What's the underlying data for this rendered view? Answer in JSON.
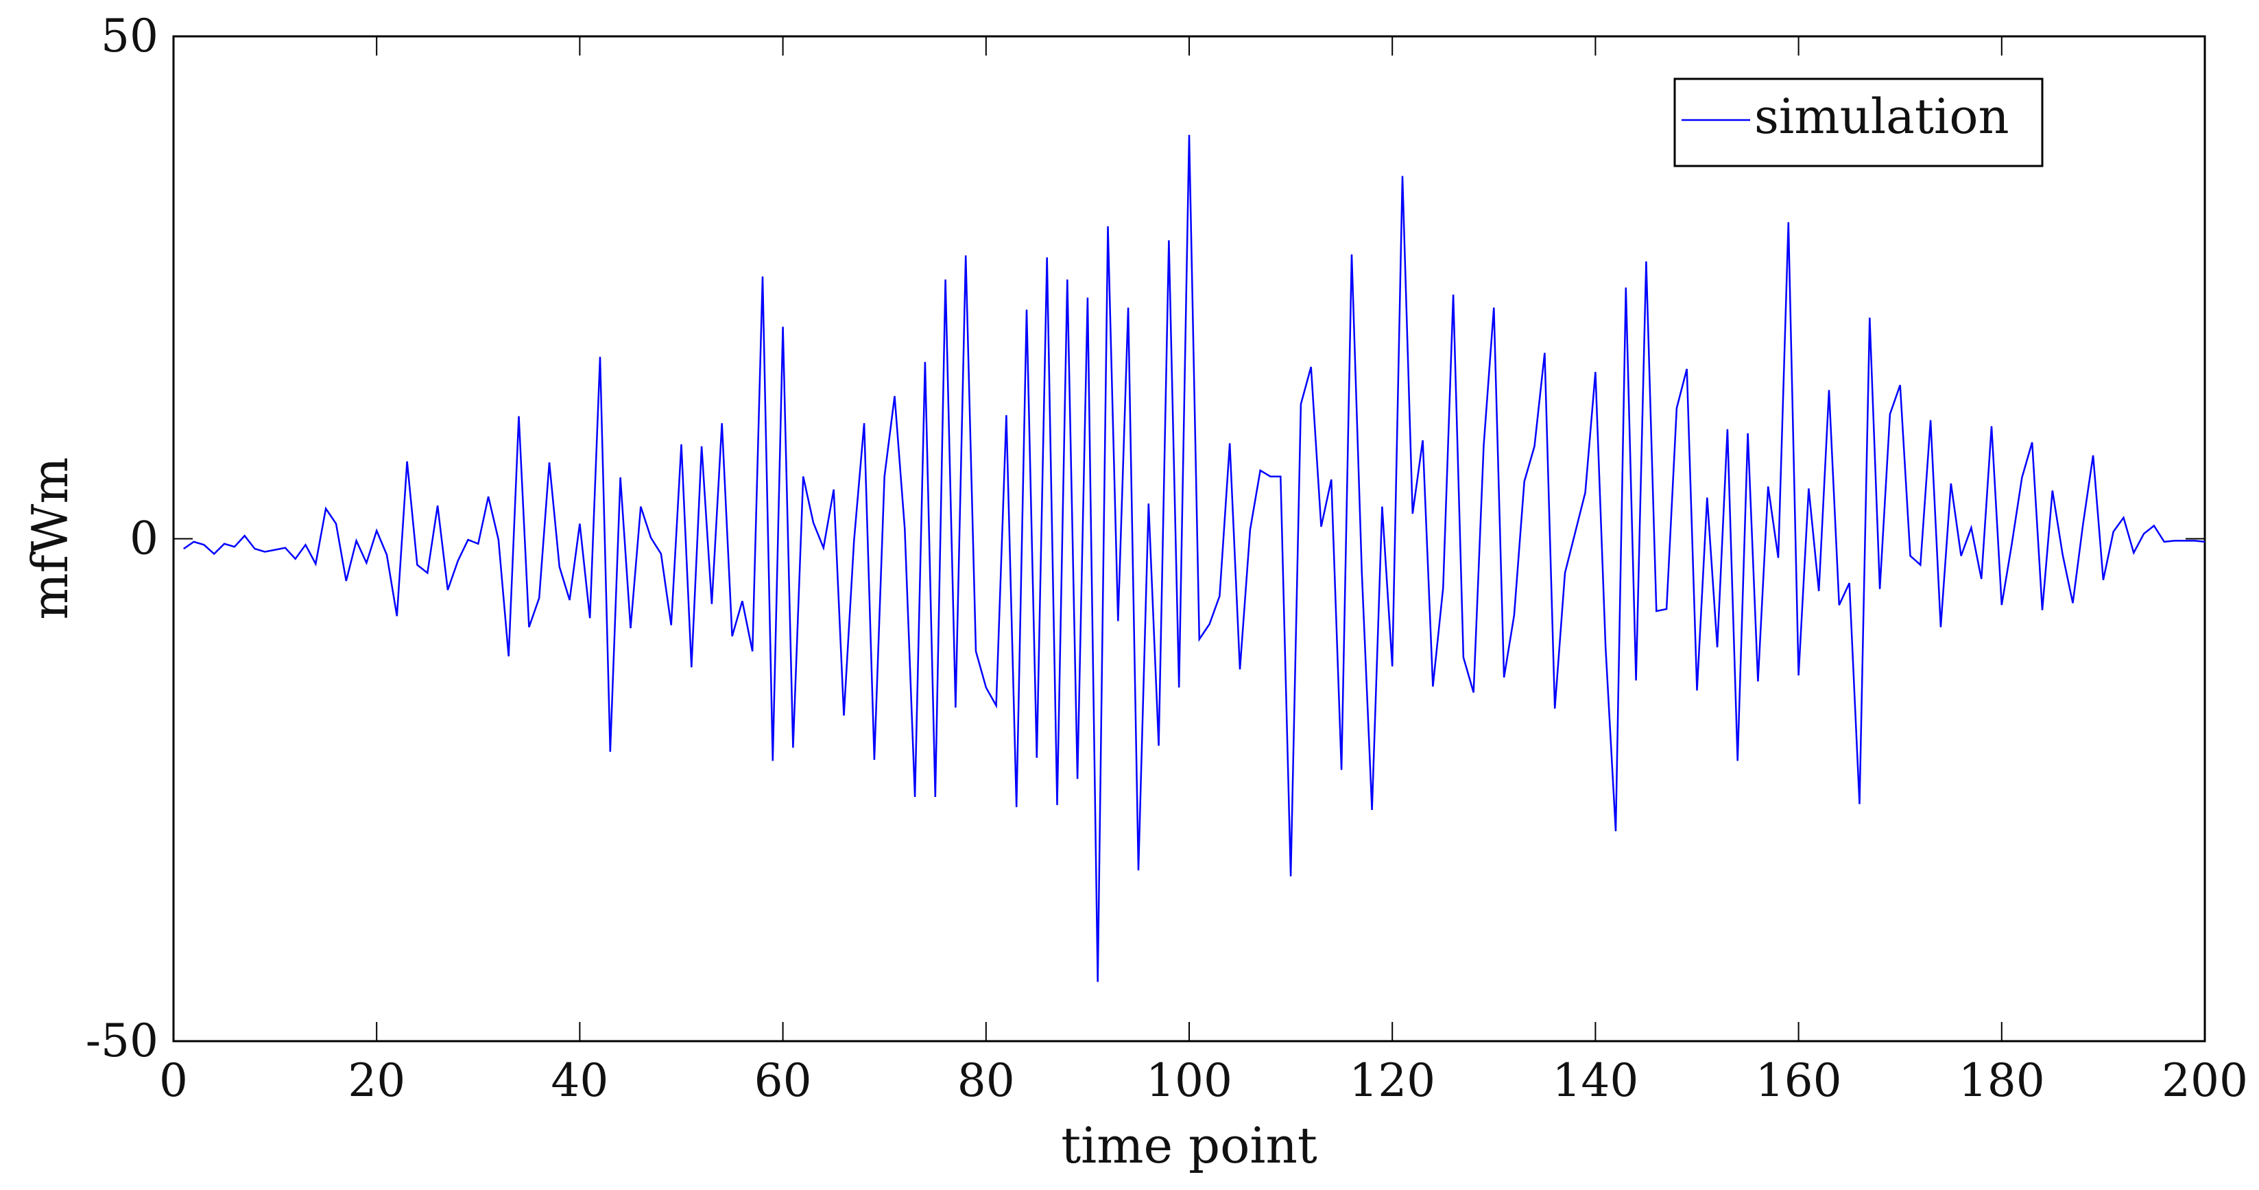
{
  "chart_data": {
    "type": "line",
    "xlabel": "time point",
    "ylabel": "mfWm",
    "xlim": [
      0,
      200
    ],
    "ylim": [
      -50,
      50
    ],
    "xticks": [
      0,
      20,
      40,
      60,
      80,
      100,
      120,
      140,
      160,
      180,
      200
    ],
    "yticks": [
      -50,
      0,
      50
    ],
    "grid": false,
    "legend": {
      "position": "top-right"
    },
    "series": [
      {
        "name": "simulation",
        "color": "#0000ff",
        "x": [
          1,
          2,
          3,
          4,
          5,
          6,
          7,
          8,
          9,
          10,
          11,
          12,
          13,
          14,
          15,
          16,
          17,
          18,
          19,
          20,
          21,
          22,
          23,
          24,
          25,
          26,
          27,
          28,
          29,
          30,
          31,
          32,
          33,
          34,
          35,
          36,
          37,
          38,
          39,
          40,
          41,
          42,
          43,
          44,
          45,
          46,
          47,
          48,
          49,
          50,
          51,
          52,
          53,
          54,
          55,
          56,
          57,
          58,
          59,
          60,
          61,
          62,
          63,
          64,
          65,
          66,
          67,
          68,
          69,
          70,
          71,
          72,
          73,
          74,
          75,
          76,
          77,
          78,
          79,
          80,
          81,
          82,
          83,
          84,
          85,
          86,
          87,
          88,
          89,
          90,
          91,
          92,
          93,
          94,
          95,
          96,
          97,
          98,
          99,
          100,
          101,
          102,
          103,
          104,
          105,
          106,
          107,
          108,
          109,
          110,
          111,
          112,
          113,
          114,
          115,
          116,
          117,
          118,
          119,
          120,
          121,
          122,
          123,
          124,
          125,
          126,
          127,
          128,
          129,
          130,
          131,
          132,
          133,
          134,
          135,
          136,
          137,
          138,
          139,
          140,
          141,
          142,
          143,
          144,
          145,
          146,
          147,
          148,
          149,
          150,
          151,
          152,
          153,
          154,
          155,
          156,
          157,
          158,
          159,
          160,
          161,
          162,
          163,
          164,
          165,
          166,
          167,
          168,
          169,
          170,
          171,
          172,
          173,
          174,
          175,
          176,
          177,
          178,
          179,
          180,
          181,
          182,
          183,
          184,
          185,
          186,
          187,
          188,
          189,
          190,
          191,
          192,
          193,
          194,
          195,
          196,
          197,
          198,
          199,
          200
        ],
        "values": [
          -1.0,
          -0.3,
          -0.6,
          -1.5,
          -0.5,
          -0.8,
          0.3,
          -1.0,
          -1.3,
          -1.1,
          -0.9,
          -2.0,
          -0.6,
          -2.5,
          3.0,
          1.5,
          -4.2,
          -0.2,
          -2.4,
          0.8,
          -1.6,
          -7.7,
          7.7,
          -2.6,
          -3.4,
          3.3,
          -5.1,
          -2.2,
          -0.1,
          -0.5,
          4.2,
          -0.1,
          -11.7,
          12.2,
          -8.8,
          -5.9,
          7.6,
          -2.8,
          -6.1,
          1.5,
          -7.9,
          18.1,
          -21.2,
          6.1,
          -8.9,
          3.2,
          0.1,
          -1.5,
          -8.6,
          9.4,
          -12.8,
          9.2,
          -6.5,
          11.5,
          -9.7,
          -6.2,
          -11.2,
          26.1,
          -22.1,
          21.1,
          -20.8,
          6.2,
          1.6,
          -0.9,
          4.9,
          -17.6,
          -0.2,
          11.5,
          -22.0,
          6.2,
          14.2,
          1.0,
          -25.7,
          17.6,
          -25.7,
          25.8,
          -16.8,
          28.2,
          -11.2,
          -14.8,
          -16.6,
          12.3,
          -26.7,
          22.8,
          -21.8,
          28.0,
          -26.5,
          25.8,
          -23.9,
          24.0,
          -44.1,
          31.1,
          -8.2,
          23.0,
          -33.0,
          3.5,
          -20.6,
          29.7,
          -14.8,
          40.2,
          -10.0,
          -8.5,
          -5.7,
          9.5,
          -13.0,
          0.9,
          6.8,
          6.2,
          6.2,
          -33.6,
          13.4,
          17.1,
          1.2,
          5.9,
          -23.0,
          28.3,
          -3.4,
          -27.0,
          3.2,
          -12.7,
          36.1,
          2.5,
          9.8,
          -14.7,
          -4.9,
          24.3,
          -11.8,
          -15.3,
          9.3,
          23.0,
          -13.8,
          -7.6,
          5.7,
          9.2,
          18.5,
          -16.9,
          -3.4,
          0.6,
          4.6,
          16.6,
          -10.8,
          -29.1,
          25.0,
          -14.1,
          27.6,
          -7.2,
          -7.0,
          13.0,
          16.9,
          -15.1,
          4.1,
          -10.8,
          10.9,
          -22.1,
          10.5,
          -14.2,
          5.2,
          -1.9,
          31.5,
          -13.6,
          5.0,
          -5.2,
          14.8,
          -6.6,
          -4.4,
          -26.4,
          22.0,
          -5.0,
          12.4,
          15.3,
          -1.7,
          -2.6,
          11.8,
          -8.8,
          5.5,
          -1.7,
          1.1,
          -4.0,
          11.2,
          -6.6,
          -0.5,
          6.1,
          9.6,
          -7.1,
          4.8,
          -1.6,
          -6.4,
          1.4,
          8.3,
          -4.1,
          0.7,
          2.1,
          -1.4,
          0.5,
          1.3,
          -0.3,
          -0.2,
          -0.2,
          -0.2,
          -0.3
        ]
      }
    ]
  }
}
